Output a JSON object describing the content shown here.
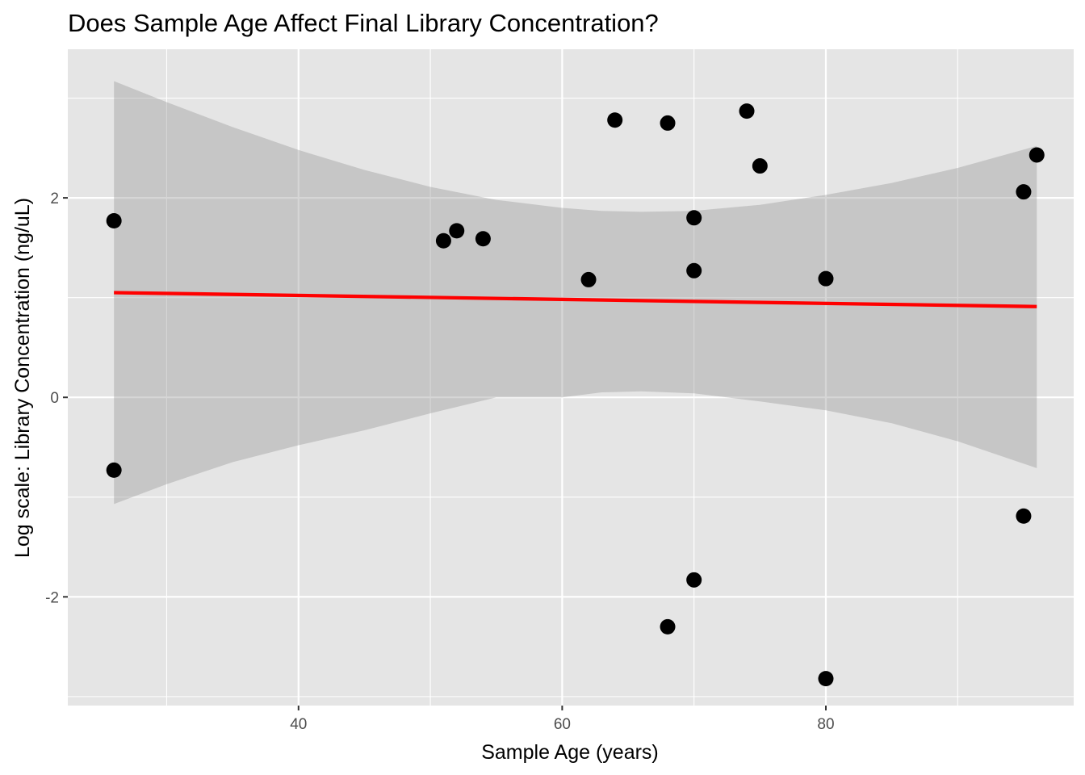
{
  "chart_data": {
    "type": "scatter",
    "title": "Does Sample Age Affect Final Library Concentration?",
    "xlabel": "Sample Age (years)",
    "ylabel": "Log scale: Library Concentration (ng/uL)",
    "xlim": [
      22.5,
      98.8
    ],
    "ylim": [
      -3.09,
      3.49
    ],
    "x_ticks": [
      40,
      60,
      80
    ],
    "x_tick_labels": [
      "40",
      "60",
      "80"
    ],
    "y_ticks": [
      -2,
      0,
      2
    ],
    "y_tick_labels": [
      "-2",
      "0",
      "2"
    ],
    "x_minor_ticks": [
      30,
      50,
      70,
      90
    ],
    "y_minor_ticks": [
      -3,
      -1,
      1,
      3
    ],
    "grid": true,
    "series": [
      {
        "name": "samples",
        "points": [
          {
            "x": 26,
            "y": 1.77
          },
          {
            "x": 26,
            "y": -0.73
          },
          {
            "x": 51,
            "y": 1.57
          },
          {
            "x": 52,
            "y": 1.67
          },
          {
            "x": 54,
            "y": 1.59
          },
          {
            "x": 62,
            "y": 1.18
          },
          {
            "x": 64,
            "y": 2.78
          },
          {
            "x": 68,
            "y": 2.75
          },
          {
            "x": 68,
            "y": -2.3
          },
          {
            "x": 70,
            "y": 1.8
          },
          {
            "x": 70,
            "y": 1.27
          },
          {
            "x": 70,
            "y": -1.83
          },
          {
            "x": 74,
            "y": 2.87
          },
          {
            "x": 75,
            "y": 2.32
          },
          {
            "x": 80,
            "y": 1.19
          },
          {
            "x": 80,
            "y": -2.82
          },
          {
            "x": 95,
            "y": 2.06
          },
          {
            "x": 95,
            "y": -1.19
          },
          {
            "x": 96,
            "y": 2.43
          }
        ]
      }
    ],
    "trend_line": {
      "method": "linear fit",
      "color": "#ff0000",
      "x": [
        26,
        96
      ],
      "y": [
        1.05,
        0.91
      ]
    },
    "confidence_band": {
      "color": "#999999",
      "x": [
        26,
        30,
        35,
        40,
        45,
        50,
        55,
        60,
        63,
        66,
        70,
        75,
        80,
        85,
        90,
        96
      ],
      "upper": [
        3.17,
        2.96,
        2.71,
        2.48,
        2.28,
        2.11,
        1.98,
        1.9,
        1.87,
        1.86,
        1.87,
        1.93,
        2.03,
        2.15,
        2.3,
        2.52
      ],
      "lower": [
        -1.07,
        -0.87,
        -0.65,
        -0.48,
        -0.33,
        -0.16,
        0.0,
        0.0,
        0.05,
        0.06,
        0.04,
        -0.04,
        -0.13,
        -0.26,
        -0.44,
        -0.71
      ]
    },
    "colors": {
      "panel_background": "#e5e5e5",
      "grid": "#ffffff",
      "point": "#000000",
      "tick_text": "#4d4d4d"
    }
  }
}
